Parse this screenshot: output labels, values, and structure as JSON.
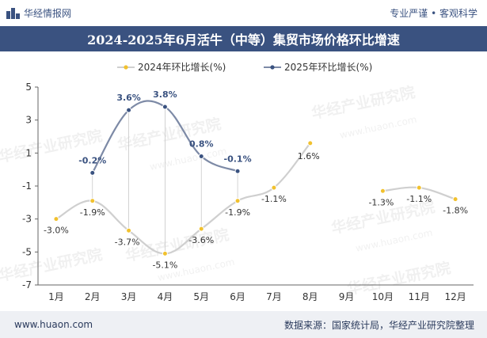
{
  "header": {
    "site_name": "华经情报网",
    "slogan": "专业严谨 • 客观科学"
  },
  "footer": {
    "website": "www.huaon.com",
    "source": "数据来源：国家统计局，华经产业研究院整理"
  },
  "watermark": {
    "text": "华经产业研究院",
    "url": "www.huaon.com"
  },
  "chart_data": {
    "type": "line",
    "title": "2024-2025年6月活牛（中等）集贸市场价格环比增速",
    "xlabel": "",
    "ylabel": "",
    "categories": [
      "1月",
      "2月",
      "3月",
      "4月",
      "5月",
      "6月",
      "7月",
      "8月",
      "9月",
      "10月",
      "11月",
      "12月"
    ],
    "ylim": [
      -7,
      5
    ],
    "yticks": [
      5,
      3,
      1,
      -1,
      -3,
      -5,
      -7
    ],
    "legend_position": "top",
    "series": [
      {
        "name": "2024年环比增长(%)",
        "color": "#f1c12e",
        "line_color": "#cfcfcf",
        "values": [
          -3.0,
          -1.9,
          -3.7,
          -5.1,
          -3.6,
          -1.9,
          -1.1,
          1.6,
          null,
          -1.3,
          -1.1,
          -1.8
        ],
        "labels": [
          "-3.0%",
          "-1.9%",
          "-3.7%",
          "-5.1%",
          "-3.6%",
          "-1.9%",
          "-1.1%",
          "1.6%",
          "",
          "-1.3%",
          "-1.1%",
          "-1.8%"
        ]
      },
      {
        "name": "2025年环比增长(%)",
        "color": "#3a5280",
        "line_color": "#7d8aa6",
        "values": [
          null,
          -0.2,
          3.6,
          3.8,
          0.8,
          -0.1,
          null,
          null,
          null,
          null,
          null,
          null
        ],
        "labels": [
          "",
          "-0.2%",
          "3.6%",
          "3.8%",
          "0.8%",
          "-0.1%",
          "",
          "",
          "",
          "",
          "",
          ""
        ]
      }
    ]
  }
}
